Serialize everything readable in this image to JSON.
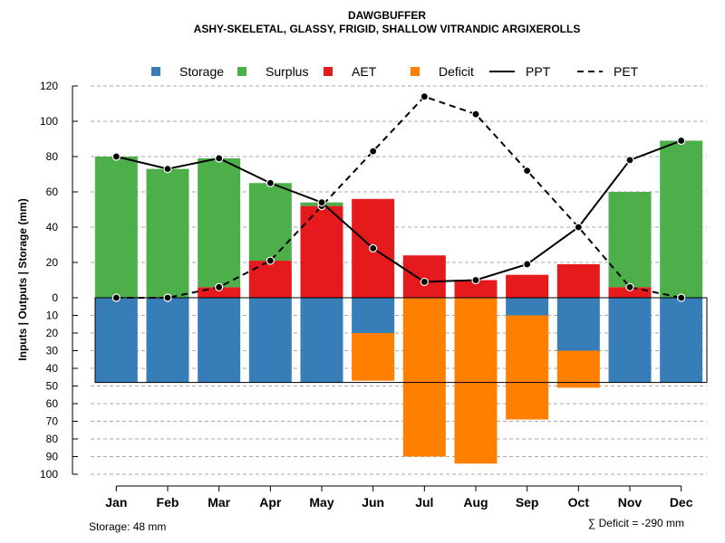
{
  "chart_data": {
    "type": "bar",
    "title": "DAWGBUFFER",
    "subtitle": "ASHY-SKELETAL, GLASSY, FRIGID, SHALLOW VITRANDIC ARGIXEROLLS",
    "ylabel": "Inputs | Outputs | Storage    (mm)",
    "categories": [
      "Jan",
      "Feb",
      "Mar",
      "Apr",
      "May",
      "Jun",
      "Jul",
      "Aug",
      "Sep",
      "Oct",
      "Nov",
      "Dec"
    ],
    "upper_ticks": [
      "0",
      "20",
      "40",
      "60",
      "80",
      "100",
      "120"
    ],
    "lower_ticks": [
      "10",
      "20",
      "30",
      "40",
      "50",
      "60",
      "70",
      "80",
      "90",
      "100"
    ],
    "ylim_upper": [
      0,
      120
    ],
    "ylim_lower": [
      0,
      100
    ],
    "series": [
      {
        "name": "Storage",
        "color": "#377EB8",
        "values": [
          48,
          48,
          48,
          48,
          48,
          20,
          0,
          0,
          10,
          30,
          48,
          48
        ]
      },
      {
        "name": "Surplus",
        "color": "#4DAF4A",
        "values": [
          80,
          73,
          73,
          44,
          2,
          0,
          0,
          0,
          0,
          0,
          54,
          89
        ]
      },
      {
        "name": "AET",
        "color": "#E41A1C",
        "values": [
          0,
          0,
          6,
          21,
          52,
          56,
          24,
          10,
          13,
          19,
          6,
          0
        ]
      },
      {
        "name": "Deficit",
        "color": "#FF7F00",
        "values": [
          0,
          0,
          0,
          0,
          0,
          27,
          90,
          94,
          59,
          21,
          0,
          0
        ]
      },
      {
        "name": "PPT",
        "color": "#000000",
        "style": "solid",
        "values": [
          80,
          73,
          79,
          65,
          54,
          28,
          9,
          10,
          19,
          40,
          78,
          89
        ]
      },
      {
        "name": "PET",
        "color": "#000000",
        "style": "dashed",
        "values": [
          0,
          0,
          6,
          21,
          52,
          83,
          114,
          104,
          72,
          40,
          6,
          0
        ]
      }
    ],
    "annotations": {
      "storage": "Storage: 48 mm",
      "deficit": "∑ Deficit = -290 mm"
    }
  }
}
